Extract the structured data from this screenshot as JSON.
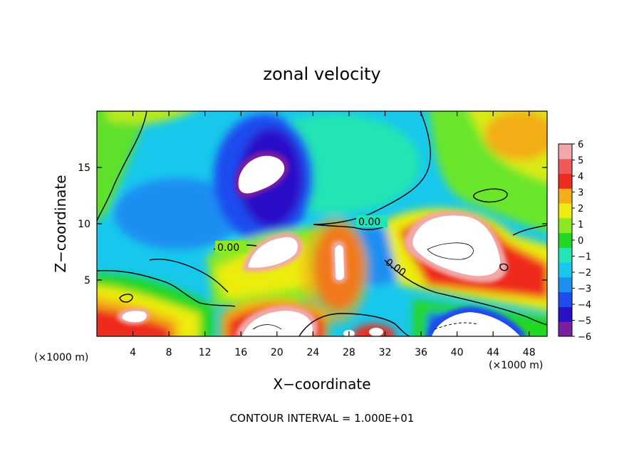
{
  "chart_data": {
    "type": "heatmap",
    "title": "zonal velocity",
    "xlabel": "X−coordinate",
    "ylabel": "Z−coordinate",
    "x_unit_left": "(×1000 m)",
    "x_unit_right": "(×1000 m)",
    "footer": "CONTOUR INTERVAL = 1.000E+01",
    "xlim": [
      0,
      50
    ],
    "ylim": [
      0,
      20
    ],
    "x_ticks": [
      4,
      8,
      12,
      16,
      20,
      24,
      28,
      32,
      36,
      40,
      44,
      48
    ],
    "x_tick_labels": [
      "4",
      "8",
      "12",
      "16",
      "20",
      "24",
      "28",
      "32",
      "36",
      "40",
      "44",
      "48"
    ],
    "y_ticks": [
      5,
      10,
      15
    ],
    "y_tick_labels": [
      "5",
      "10",
      "15"
    ],
    "contour_labels": [
      "0.00",
      "0.00",
      "0.00"
    ],
    "colorbar": {
      "min": -6,
      "max": 6,
      "ticks": [
        6,
        5,
        4,
        3,
        2,
        1,
        0,
        -1,
        -2,
        -3,
        -4,
        -5,
        -6
      ],
      "tick_labels": [
        "6",
        "5",
        "4",
        "3",
        "2",
        "1",
        "0",
        "−1",
        "−2",
        "−3",
        "−4",
        "−5",
        "−6"
      ],
      "colors": [
        "#7a1fa2",
        "#2a10c8",
        "#1e4cf0",
        "#1e8ef2",
        "#18c8ec",
        "#22e4b4",
        "#22d722",
        "#8ce820",
        "#ecec10",
        "#f3ae18",
        "#ee2b1f",
        "#ee5a5a",
        "#f2a8a8"
      ]
    },
    "features": [
      {
        "kind": "white",
        "label": "≤−6",
        "cx": 19.5,
        "cz": 14.5,
        "rx": 2.4,
        "rz": 1.7
      },
      {
        "kind": "white",
        "label": "≥6",
        "cx": 21.0,
        "cz": 7.2,
        "rx": 2.8,
        "rz": 1.5
      },
      {
        "kind": "white",
        "label": "≥6",
        "cx": 27.0,
        "cz": 6.3,
        "rx": 0.5,
        "rz": 1.8
      },
      {
        "kind": "white",
        "label": "≥6",
        "cx": 40.0,
        "cz": 7.4,
        "rx": 3.5,
        "rz": 2.0
      },
      {
        "kind": "white",
        "label": "≥6",
        "cx": 5.0,
        "cz": 1.8,
        "rx": 1.6,
        "rz": 0.5
      },
      {
        "kind": "white",
        "label": "≥6",
        "cx": 21.0,
        "cz": 1.2,
        "rx": 5.5,
        "rz": 1.3
      },
      {
        "kind": "white",
        "label": "≤−6",
        "cx": 42.0,
        "cz": 1.2,
        "rx": 3.0,
        "rz": 0.9
      },
      {
        "kind": "white",
        "label": "≥6",
        "cx": 31.5,
        "cz": 0.6,
        "rx": 0.8,
        "rz": 0.6
      },
      {
        "kind": "white",
        "label": "≥6",
        "cx": 28.5,
        "cz": 0.5,
        "rx": 0.7,
        "rz": 0.5
      }
    ]
  }
}
